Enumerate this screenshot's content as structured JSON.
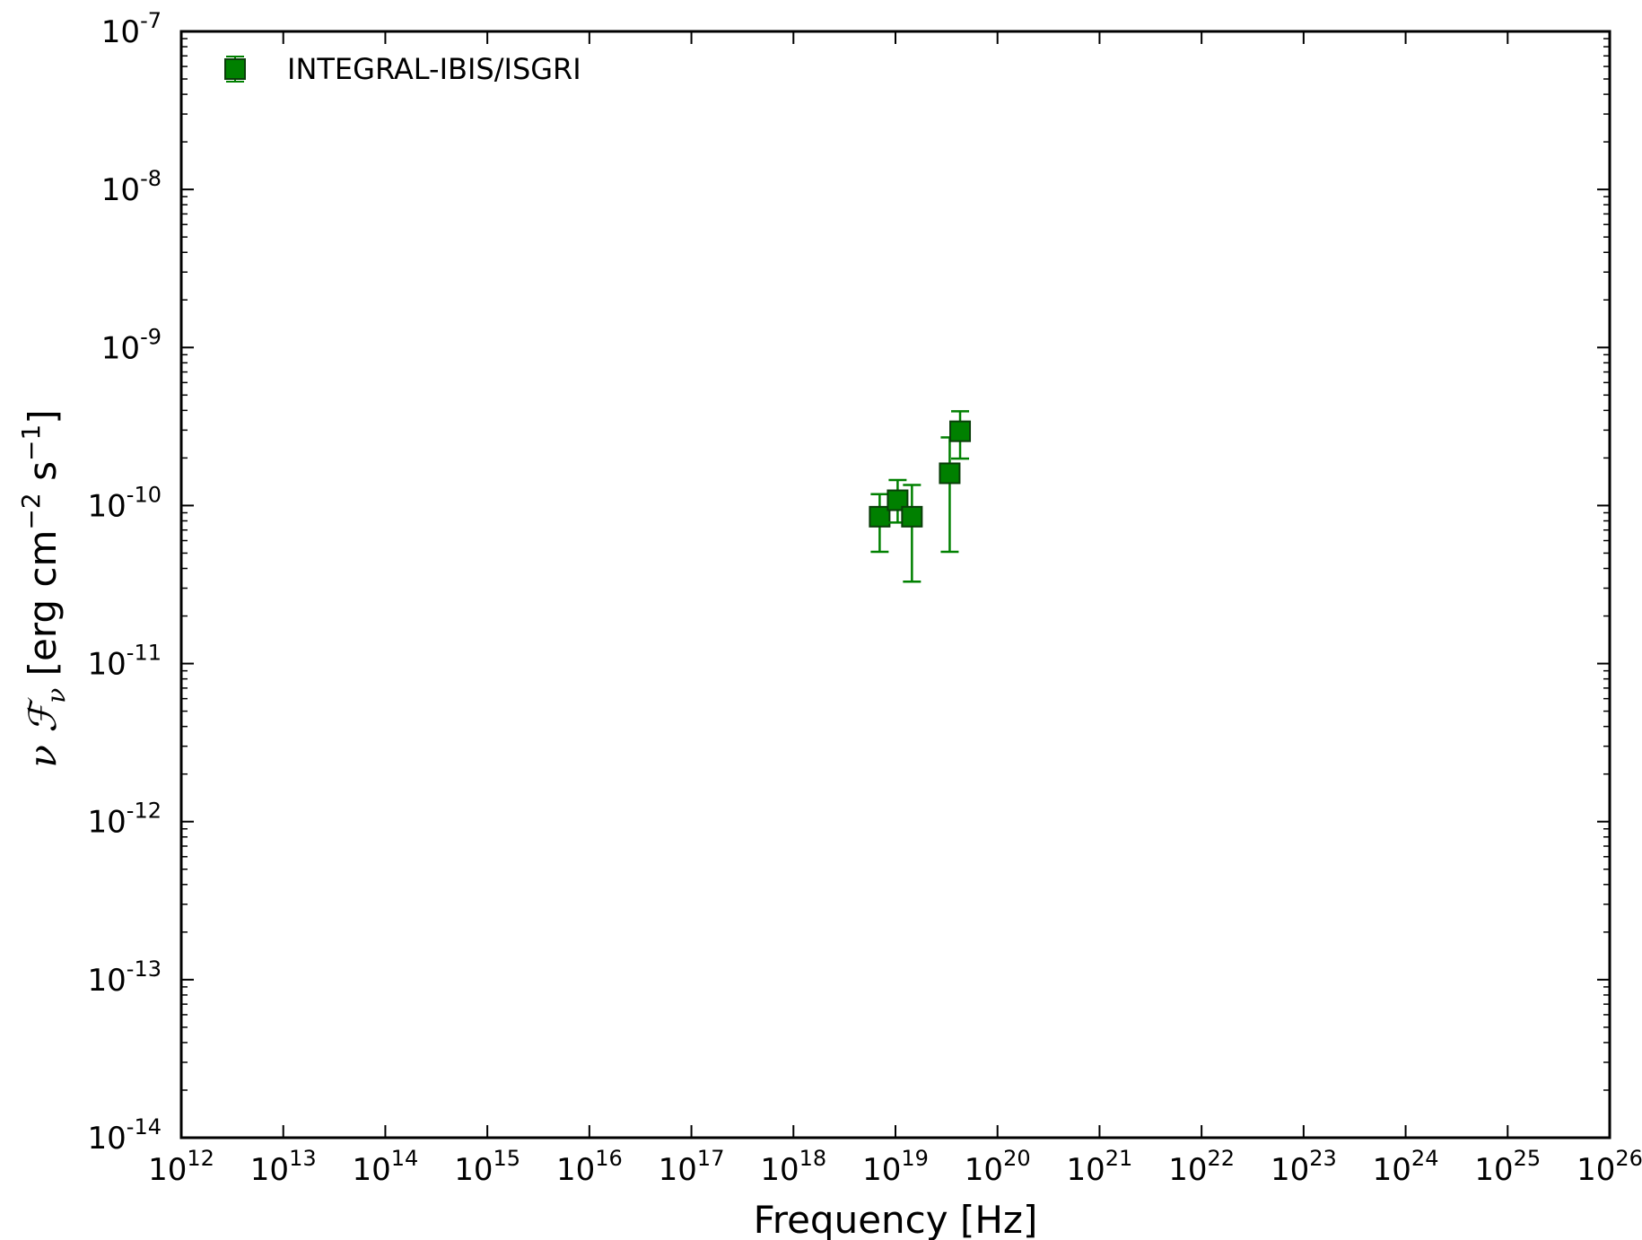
{
  "chart_data": {
    "type": "scatter",
    "title": "",
    "xlabel": "Frequency [Hz]",
    "ylabel": {
      "math": "ν ℱ",
      "sub": "ν",
      "units_open": " [erg cm",
      "exp1": "−2",
      "mid": " s",
      "exp2": "−1",
      "units_close": "]"
    },
    "xscale": "log",
    "yscale": "log",
    "xlim_exp": [
      12,
      26
    ],
    "ylim_exp": [
      -14,
      -7
    ],
    "x_ticks": [
      {
        "base": "10",
        "exp": "12"
      },
      {
        "base": "10",
        "exp": "13"
      },
      {
        "base": "10",
        "exp": "14"
      },
      {
        "base": "10",
        "exp": "15"
      },
      {
        "base": "10",
        "exp": "16"
      },
      {
        "base": "10",
        "exp": "17"
      },
      {
        "base": "10",
        "exp": "18"
      },
      {
        "base": "10",
        "exp": "19"
      },
      {
        "base": "10",
        "exp": "20"
      },
      {
        "base": "10",
        "exp": "21"
      },
      {
        "base": "10",
        "exp": "22"
      },
      {
        "base": "10",
        "exp": "23"
      },
      {
        "base": "10",
        "exp": "24"
      },
      {
        "base": "10",
        "exp": "25"
      },
      {
        "base": "10",
        "exp": "26"
      }
    ],
    "y_ticks": [
      {
        "base": "10",
        "exp": "-7"
      },
      {
        "base": "10",
        "exp": "-8"
      },
      {
        "base": "10",
        "exp": "-9"
      },
      {
        "base": "10",
        "exp": "-10"
      },
      {
        "base": "10",
        "exp": "-11"
      },
      {
        "base": "10",
        "exp": "-12"
      },
      {
        "base": "10",
        "exp": "-13"
      },
      {
        "base": "10",
        "exp": "-14"
      }
    ],
    "grid": false,
    "legend_position": "top-left",
    "series": [
      {
        "name": "INTEGRAL-IBIS/ISGRI",
        "color": "#008000",
        "edge_color": "#0a3d0a",
        "marker": "square",
        "points": [
          {
            "x": 7e+18,
            "y": 8.5e-11,
            "y_err_low": 5.1e-11,
            "y_err_high": 1.18e-10
          },
          {
            "x": 1.05e+19,
            "y": 1.08e-10,
            "y_err_low": 7.8e-11,
            "y_err_high": 1.45e-10
          },
          {
            "x": 1.45e+19,
            "y": 8.5e-11,
            "y_err_low": 3.3e-11,
            "y_err_high": 1.35e-10
          },
          {
            "x": 3.4e+19,
            "y": 1.6e-10,
            "y_err_low": 5.1e-11,
            "y_err_high": 2.7e-10
          },
          {
            "x": 4.3e+19,
            "y": 2.95e-10,
            "y_err_low": 1.98e-10,
            "y_err_high": 3.95e-10
          }
        ]
      }
    ]
  }
}
